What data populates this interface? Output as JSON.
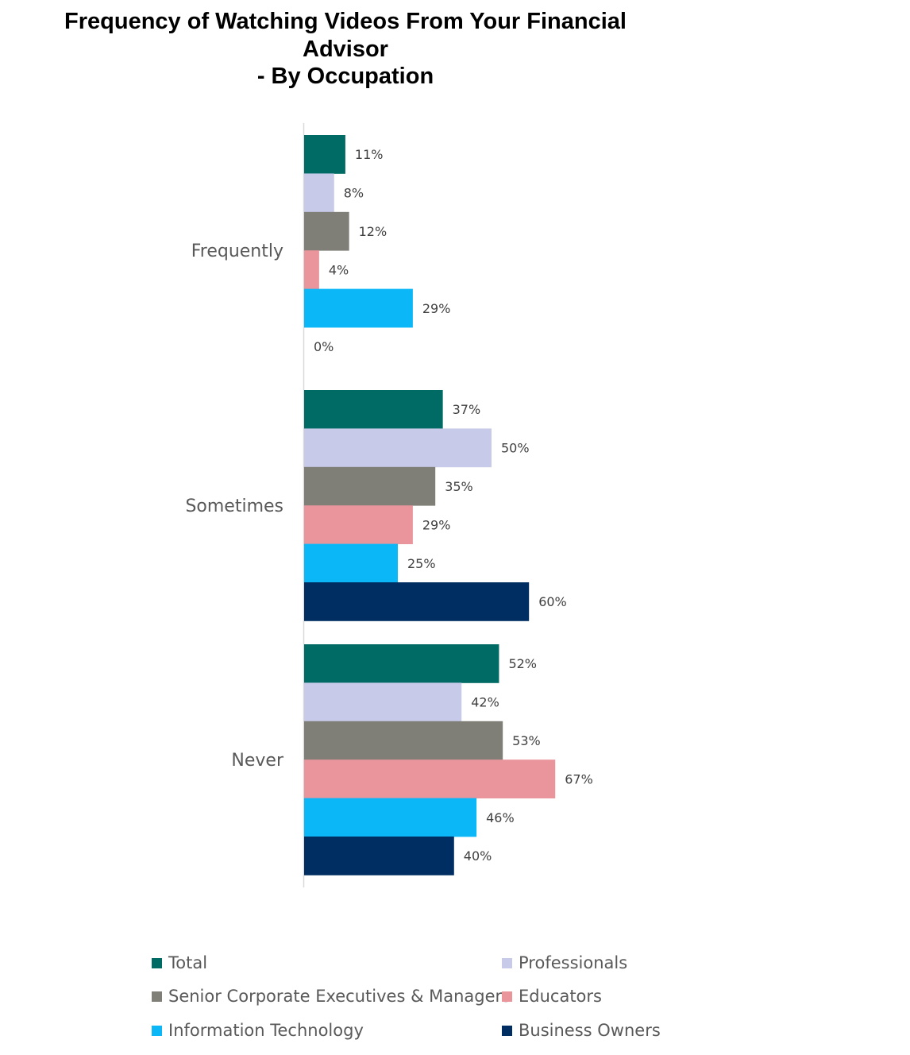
{
  "title_lines": [
    "Frequency of Watching Videos From Your Financial",
    "Advisor",
    "- By Occupation"
  ],
  "chart_data": {
    "type": "bar",
    "orientation": "horizontal",
    "categories": [
      "Frequently",
      "Sometimes",
      "Never"
    ],
    "series": [
      {
        "name": "Total",
        "color": "#006B64",
        "values": [
          11,
          37,
          52
        ]
      },
      {
        "name": "Professionals",
        "color": "#C7CAE8",
        "values": [
          8,
          50,
          42
        ]
      },
      {
        "name": "Senior Corporate Executives & Managers",
        "color": "#7F7F78",
        "values": [
          12,
          35,
          53
        ]
      },
      {
        "name": "Educators",
        "color": "#EA959C",
        "values": [
          4,
          29,
          67
        ]
      },
      {
        "name": "Information Technology",
        "color": "#0BB7F7",
        "values": [
          29,
          25,
          46
        ]
      },
      {
        "name": "Business Owners",
        "color": "#002E62",
        "values": [
          0,
          60,
          40
        ]
      }
    ],
    "value_suffix": "%",
    "data_labels": true,
    "grid": false,
    "legend_position": "bottom"
  }
}
